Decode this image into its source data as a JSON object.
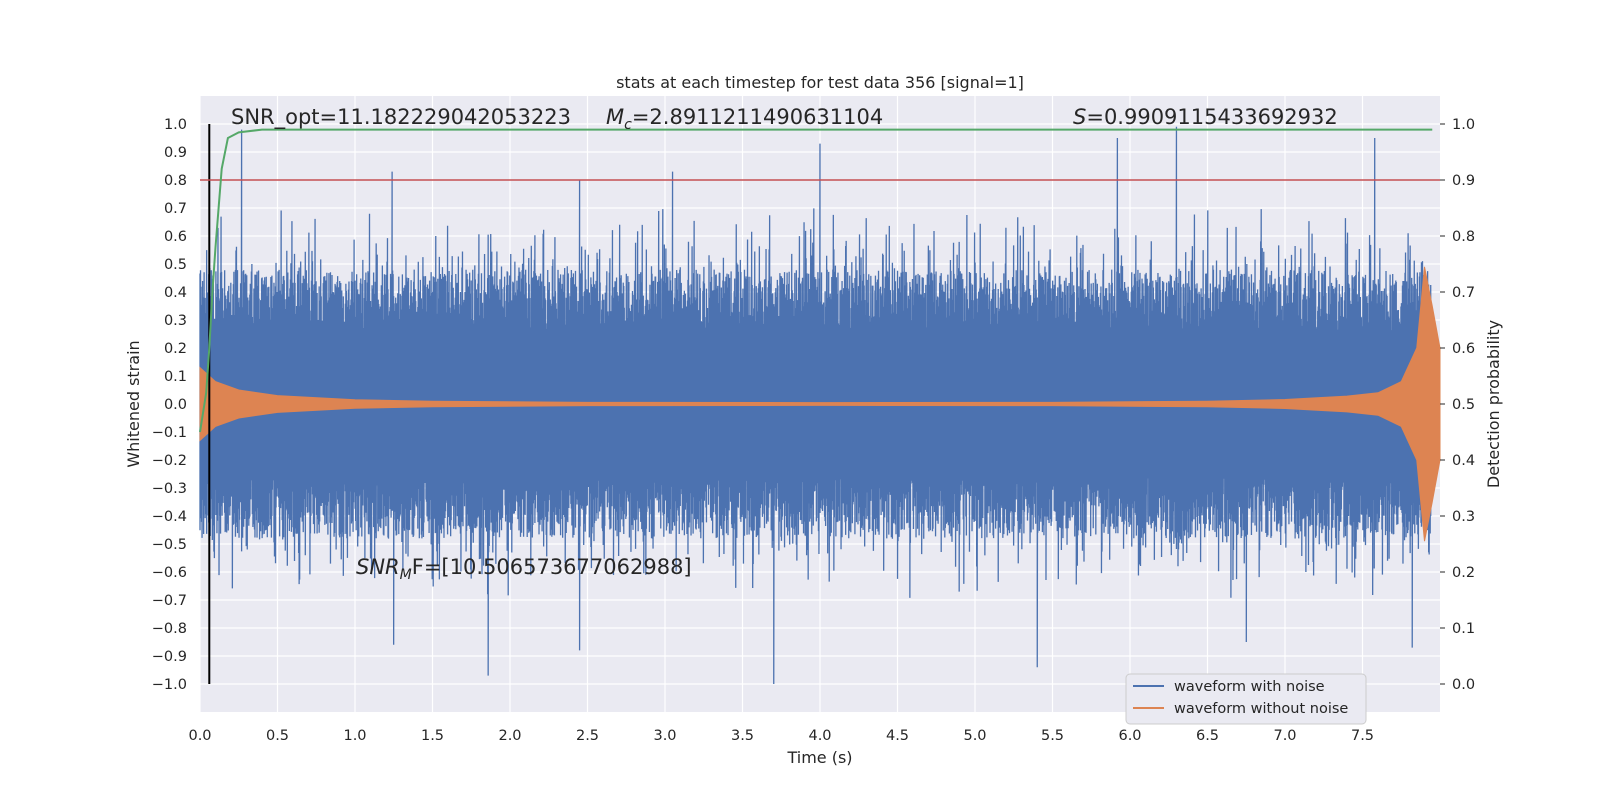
{
  "chart_data": {
    "type": "line",
    "title": "stats at each timestep for test data 356 [signal=1]",
    "xlabel": "Time (s)",
    "ylabel": "Whitened strain",
    "y2label": "Detection probability",
    "xlim": [
      0.0,
      8.0
    ],
    "ylim": [
      -1.1,
      1.1
    ],
    "y2lim": [
      -0.05,
      1.05
    ],
    "x_ticks": [
      "0.0",
      "0.5",
      "1.0",
      "1.5",
      "2.0",
      "2.5",
      "3.0",
      "3.5",
      "4.0",
      "4.5",
      "5.0",
      "5.5",
      "6.0",
      "6.5",
      "7.0",
      "7.5"
    ],
    "y_ticks": [
      "1.0",
      "0.9",
      "0.8",
      "0.7",
      "0.6",
      "0.5",
      "0.4",
      "0.3",
      "0.2",
      "0.1",
      "0.0",
      "−0.1",
      "−0.2",
      "−0.3",
      "−0.4",
      "−0.5",
      "−0.6",
      "−0.7",
      "−0.8",
      "−0.9",
      "−1.0"
    ],
    "y2_ticks": [
      "1.0",
      "0.9",
      "0.8",
      "0.7",
      "0.6",
      "0.5",
      "0.4",
      "0.3",
      "0.2",
      "0.1",
      "0.0"
    ],
    "grid": true,
    "legend_position": "lower-right",
    "annotations": {
      "snr_opt": "SNR_opt=11.182229042053223",
      "mc": "=2.8911211490631104",
      "s": "=0.9909115433692932",
      "snr_mf": "=[10.506573677062988]"
    },
    "series": [
      {
        "name": "waveform with noise",
        "color": "#4c72b0",
        "axis": "left",
        "kind": "noise_envelope",
        "sample_rate_hz": 1024,
        "envelope_amplitude_approx": 0.45,
        "visible_peaks": [
          {
            "x": 0.27,
            "y": 0.98
          },
          {
            "x": 1.24,
            "y": 0.83
          },
          {
            "x": 2.45,
            "y": 0.8
          },
          {
            "x": 3.05,
            "y": 0.83
          },
          {
            "x": 4.0,
            "y": 0.93
          },
          {
            "x": 5.92,
            "y": 0.95
          },
          {
            "x": 6.3,
            "y": 0.99
          },
          {
            "x": 7.58,
            "y": 0.95
          },
          {
            "x": 1.25,
            "y": -0.86
          },
          {
            "x": 1.86,
            "y": -0.97
          },
          {
            "x": 2.45,
            "y": -0.88
          },
          {
            "x": 3.7,
            "y": -1.0
          },
          {
            "x": 5.4,
            "y": -0.94
          },
          {
            "x": 6.75,
            "y": -0.85
          },
          {
            "x": 7.82,
            "y": -0.87
          }
        ]
      },
      {
        "name": "waveform without noise",
        "color": "#dd8452",
        "axis": "left",
        "kind": "chirp_envelope",
        "envelope": {
          "x": [
            0.0,
            0.1,
            0.25,
            0.5,
            1.0,
            1.5,
            2.5,
            4.0,
            5.5,
            6.5,
            7.0,
            7.4,
            7.6,
            7.75,
            7.85,
            7.9,
            7.95,
            8.0
          ],
          "y": [
            0.13,
            0.08,
            0.05,
            0.03,
            0.015,
            0.01,
            0.006,
            0.005,
            0.006,
            0.01,
            0.016,
            0.028,
            0.04,
            0.08,
            0.2,
            0.49,
            0.35,
            0.2
          ]
        }
      },
      {
        "name": "",
        "color": "#55a868",
        "axis": "right",
        "x": [
          0.0,
          0.04,
          0.06,
          0.08,
          0.1,
          0.12,
          0.14,
          0.18,
          0.25,
          0.4,
          1.0,
          2.0,
          3.0,
          4.0,
          5.0,
          6.0,
          7.0,
          7.95
        ],
        "y": [
          0.45,
          0.52,
          0.6,
          0.7,
          0.78,
          0.85,
          0.92,
          0.975,
          0.985,
          0.99,
          0.99,
          0.99,
          0.99,
          0.99,
          0.99,
          0.99,
          0.99,
          0.99
        ]
      }
    ],
    "reference_lines": [
      {
        "orientation": "horizontal",
        "axis": "right",
        "y": 0.9,
        "color": "#c44e52"
      },
      {
        "orientation": "vertical",
        "axis": "left",
        "x": 0.06,
        "y_range": [
          -1.0,
          1.0
        ],
        "color": "#000000"
      }
    ]
  }
}
